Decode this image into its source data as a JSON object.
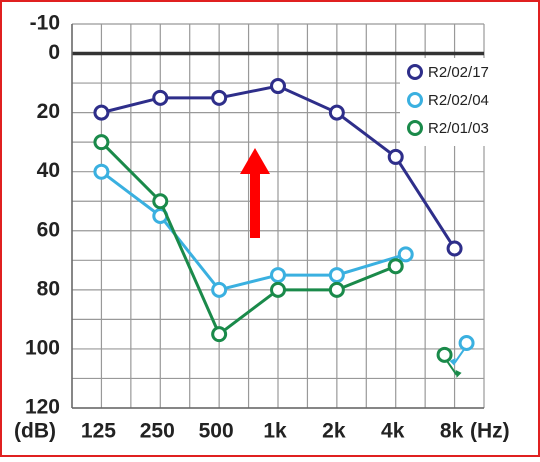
{
  "chart_data": {
    "type": "line",
    "x_label": "(Hz)",
    "y_label": "(dB)",
    "categories": [
      "125",
      "250",
      "500",
      "1k",
      "2k",
      "4k",
      "8k"
    ],
    "ylim": [
      -10,
      120
    ],
    "yticks": [
      -10,
      0,
      20,
      40,
      60,
      80,
      100,
      120
    ],
    "minor_yticks": [
      10,
      30,
      50,
      70,
      90,
      110
    ],
    "y_inverted": true,
    "grid": true,
    "legend": "upper right",
    "series": [
      {
        "name": "R2/02/17",
        "color": "#2e2e8a",
        "values": [
          20,
          15,
          15,
          11,
          20,
          35,
          66
        ],
        "no_response": [
          null,
          null,
          null,
          null,
          null,
          null,
          null
        ]
      },
      {
        "name": "R2/02/04",
        "color": "#3ab0e0",
        "values": [
          40,
          55,
          80,
          75,
          75,
          68,
          null
        ],
        "no_response": [
          null,
          null,
          null,
          null,
          null,
          null,
          98
        ]
      },
      {
        "name": "R2/01/03",
        "color": "#1a8a4a",
        "values": [
          30,
          50,
          95,
          80,
          80,
          72,
          null
        ],
        "no_response": [
          null,
          null,
          null,
          null,
          null,
          null,
          102
        ]
      }
    ]
  }
}
